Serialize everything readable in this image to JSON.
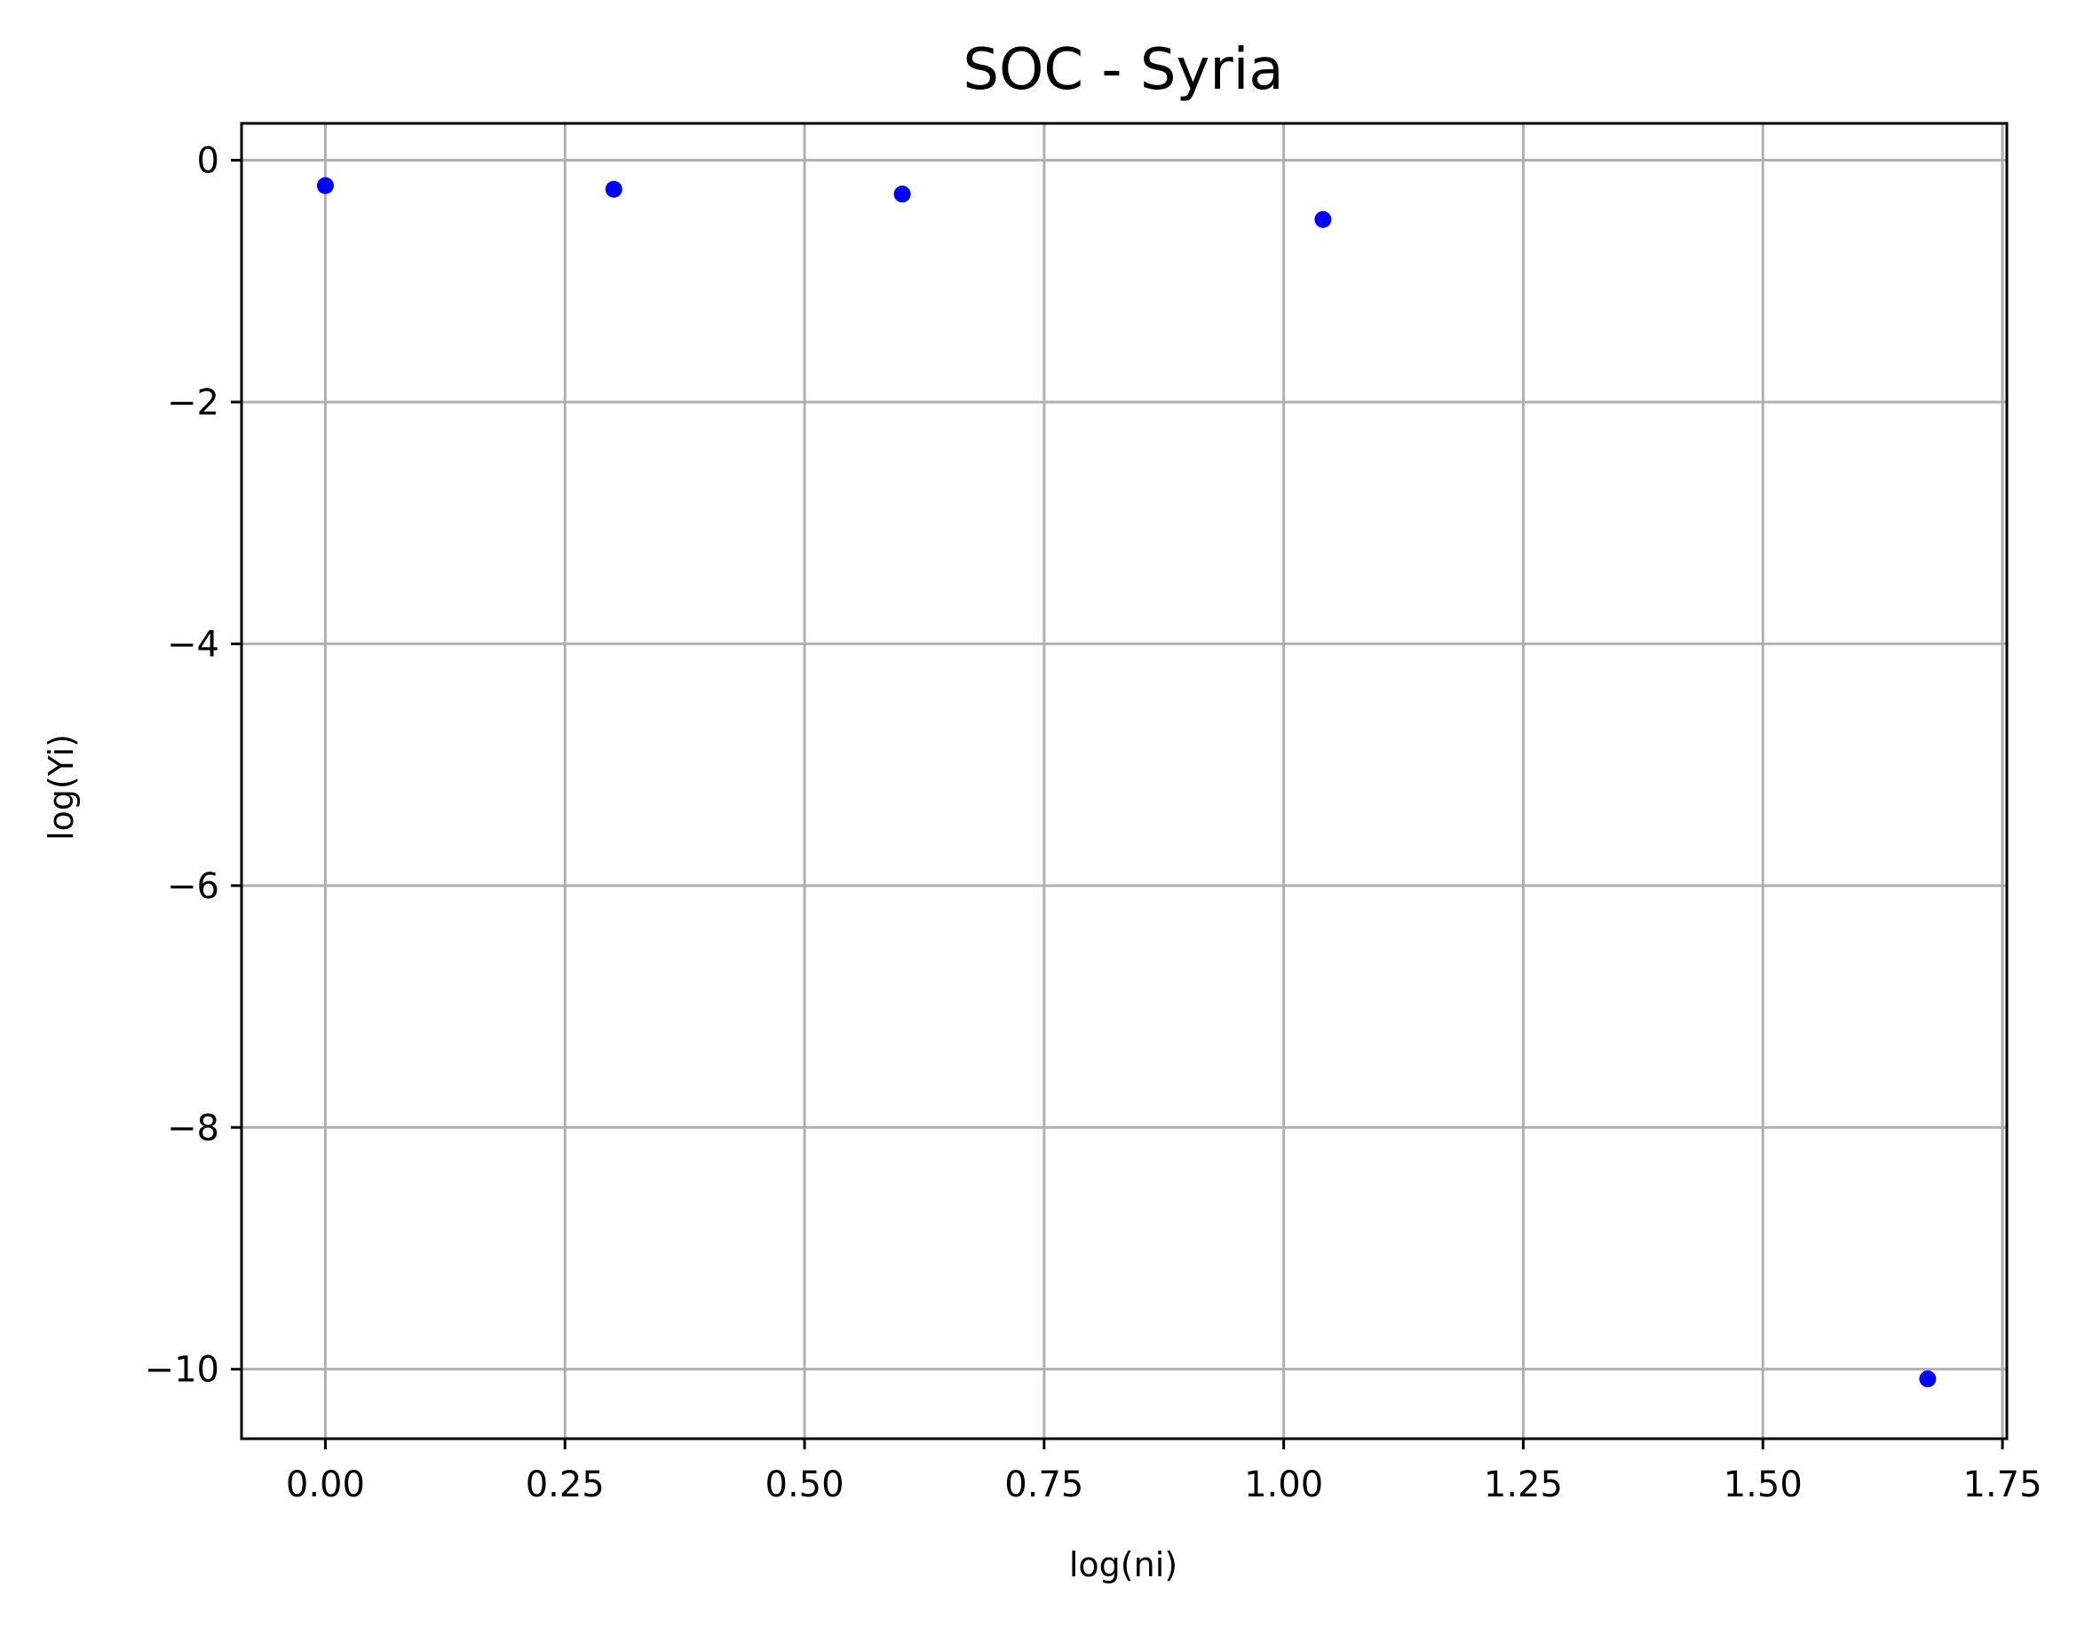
{
  "chart_data": {
    "type": "scatter",
    "title": "SOC - Syria",
    "xlabel": "log(ni)",
    "ylabel": "log(Yi)",
    "xlim": [
      -0.0875,
      1.7546
    ],
    "ylim": [
      -10.575,
      0.305
    ],
    "x_ticks": [
      0.0,
      0.25,
      0.5,
      0.75,
      1.0,
      1.25,
      1.5,
      1.75
    ],
    "x_tick_labels": [
      "0.00",
      "0.25",
      "0.50",
      "0.75",
      "1.00",
      "1.25",
      "1.50",
      "1.75"
    ],
    "y_ticks": [
      0,
      -2,
      -4,
      -6,
      -8,
      -10
    ],
    "y_tick_labels": [
      "0",
      "−2",
      "−4",
      "−6",
      "−8",
      "−10"
    ],
    "grid": true,
    "legend": "none",
    "series": [
      {
        "color": "#0000ff",
        "points": [
          {
            "x": 0.0,
            "y": -0.21
          },
          {
            "x": 0.301,
            "y": -0.24
          },
          {
            "x": 0.602,
            "y": -0.28
          },
          {
            "x": 1.041,
            "y": -0.49
          },
          {
            "x": 1.672,
            "y": -10.08
          }
        ]
      }
    ]
  }
}
